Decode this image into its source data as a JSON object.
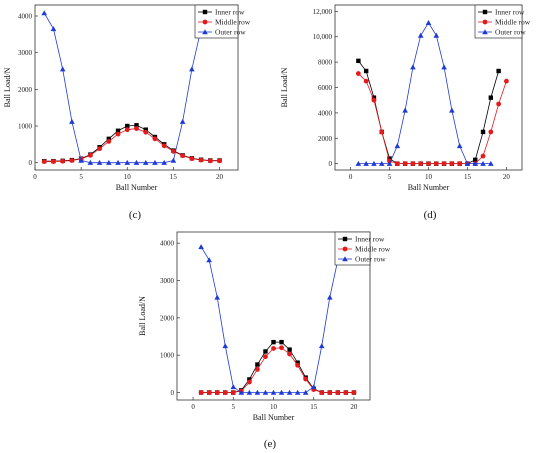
{
  "colors": {
    "inner": "#000000",
    "middle": "#e41a1c",
    "outer": "#1f3bd6",
    "axis": "#333333"
  },
  "chart_data": [
    {
      "type": "line",
      "panel_label": "(c)",
      "xlabel": "Ball Number",
      "ylabel": "Ball Load/N",
      "xlim": [
        0,
        22
      ],
      "ylim": [
        -200,
        4300
      ],
      "xticks": [
        0,
        5,
        10,
        15,
        20
      ],
      "yticks": [
        0,
        1000,
        2000,
        3000,
        4000
      ],
      "ytick_labels": [
        "0",
        "1000",
        "2000",
        "3000",
        "4000"
      ],
      "legend_position": "top-right",
      "series": [
        {
          "name": "Inner row",
          "marker": "square",
          "color_key": "inner",
          "x": [
            1,
            2,
            3,
            4,
            5,
            6,
            7,
            8,
            9,
            10,
            11,
            12,
            13,
            14,
            15,
            16,
            17,
            18,
            19,
            20
          ],
          "y": [
            40,
            40,
            50,
            70,
            110,
            220,
            420,
            650,
            870,
            1000,
            1020,
            900,
            700,
            500,
            330,
            200,
            120,
            80,
            60,
            60
          ]
        },
        {
          "name": "Middle row",
          "marker": "circle",
          "color_key": "middle",
          "x": [
            1,
            2,
            3,
            4,
            5,
            6,
            7,
            8,
            9,
            10,
            11,
            12,
            13,
            14,
            15,
            16,
            17,
            18,
            19,
            20
          ],
          "y": [
            30,
            30,
            40,
            60,
            100,
            200,
            380,
            580,
            780,
            900,
            930,
            830,
            650,
            460,
            310,
            190,
            110,
            70,
            50,
            50
          ]
        },
        {
          "name": "Outer row",
          "marker": "triangle",
          "color_key": "outer",
          "x": [
            1,
            2,
            3,
            4,
            5,
            6,
            7,
            8,
            9,
            10,
            11,
            12,
            13,
            14,
            15,
            16,
            17,
            18
          ],
          "y": [
            4080,
            3650,
            2550,
            1120,
            60,
            0,
            0,
            0,
            0,
            0,
            0,
            0,
            0,
            0,
            60,
            1120,
            2550,
            3650
          ]
        }
      ]
    },
    {
      "type": "line",
      "panel_label": "(d)",
      "xlabel": "Ball Number",
      "ylabel": "Ball Load/N",
      "xlim": [
        -2,
        22
      ],
      "ylim": [
        -500,
        12500
      ],
      "xticks": [
        0,
        5,
        10,
        15,
        20
      ],
      "yticks": [
        0,
        2000,
        4000,
        6000,
        8000,
        10000,
        12000
      ],
      "ytick_labels": [
        "0",
        "2000",
        "4000",
        "6000",
        "8000",
        "10,000",
        "12,000"
      ],
      "legend_position": "top-right",
      "series": [
        {
          "name": "Inner row",
          "marker": "square",
          "color_key": "inner",
          "x": [
            1,
            2,
            3,
            4,
            5,
            6,
            7,
            8,
            9,
            10,
            11,
            12,
            13,
            14,
            15,
            16,
            17,
            18,
            19
          ],
          "y": [
            8100,
            7300,
            5200,
            2500,
            400,
            0,
            0,
            0,
            0,
            0,
            0,
            0,
            0,
            0,
            0,
            300,
            2500,
            5200,
            7300
          ]
        },
        {
          "name": "Middle row",
          "marker": "circle",
          "color_key": "middle",
          "x": [
            1,
            2,
            3,
            4,
            5,
            6,
            7,
            8,
            9,
            10,
            11,
            12,
            13,
            14,
            15,
            16,
            17,
            18,
            19,
            20
          ],
          "y": [
            7100,
            6500,
            5000,
            2500,
            200,
            0,
            0,
            0,
            0,
            0,
            0,
            0,
            0,
            0,
            0,
            0,
            600,
            2500,
            4700,
            6500
          ]
        },
        {
          "name": "Outer row",
          "marker": "triangle",
          "color_key": "outer",
          "x": [
            1,
            2,
            3,
            4,
            5,
            6,
            7,
            8,
            9,
            10,
            11,
            12,
            13,
            14,
            15,
            16,
            17,
            18
          ],
          "y": [
            0,
            0,
            0,
            0,
            0,
            1400,
            4200,
            7600,
            10100,
            11100,
            10100,
            7600,
            4200,
            1400,
            0,
            0,
            0,
            0
          ]
        }
      ]
    },
    {
      "type": "line",
      "panel_label": "(e)",
      "xlabel": "Ball Number",
      "ylabel": "Ball Load/N",
      "xlim": [
        -2,
        22
      ],
      "ylim": [
        -200,
        4300
      ],
      "xticks": [
        0,
        5,
        10,
        15,
        20
      ],
      "yticks": [
        0,
        1000,
        2000,
        3000,
        4000
      ],
      "ytick_labels": [
        "0",
        "1000",
        "2000",
        "3000",
        "4000"
      ],
      "legend_position": "top-right",
      "series": [
        {
          "name": "Inner row",
          "marker": "square",
          "color_key": "inner",
          "x": [
            1,
            2,
            3,
            4,
            5,
            6,
            7,
            8,
            9,
            10,
            11,
            12,
            13,
            14,
            15,
            16,
            17,
            18,
            19,
            20
          ],
          "y": [
            0,
            0,
            0,
            0,
            0,
            60,
            350,
            750,
            1100,
            1350,
            1350,
            1150,
            800,
            400,
            100,
            0,
            0,
            0,
            0,
            0
          ]
        },
        {
          "name": "Middle row",
          "marker": "circle",
          "color_key": "middle",
          "x": [
            1,
            2,
            3,
            4,
            5,
            6,
            7,
            8,
            9,
            10,
            11,
            12,
            13,
            14,
            15,
            16,
            17,
            18,
            19,
            20
          ],
          "y": [
            0,
            0,
            0,
            0,
            0,
            40,
            280,
            620,
            960,
            1180,
            1200,
            1030,
            730,
            360,
            80,
            0,
            0,
            0,
            0,
            0
          ]
        },
        {
          "name": "Outer row",
          "marker": "triangle",
          "color_key": "outer",
          "x": [
            1,
            2,
            3,
            4,
            5,
            6,
            7,
            8,
            9,
            10,
            11,
            12,
            13,
            14,
            15,
            16,
            17,
            18
          ],
          "y": [
            3900,
            3550,
            2550,
            1250,
            150,
            0,
            0,
            0,
            0,
            0,
            0,
            0,
            0,
            0,
            150,
            1250,
            2550,
            3550
          ]
        }
      ]
    }
  ]
}
